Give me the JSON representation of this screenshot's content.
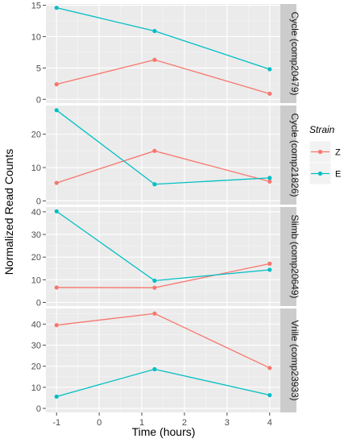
{
  "chart_data": {
    "type": "line",
    "xlabel": "Time (hours)",
    "ylabel": "Normalized Read Counts",
    "x": [
      -1,
      1.3,
      4
    ],
    "xlim": [
      -1.25,
      4.25
    ],
    "xticks": [
      -1,
      0,
      1,
      2,
      3,
      4
    ],
    "legend": {
      "title": "Strain",
      "position": "right",
      "entries": [
        "Z",
        "E"
      ]
    },
    "colors": {
      "Z": "#f8766d",
      "E": "#00bfc4"
    },
    "grid": true,
    "panels": [
      {
        "strip": "Cycle (comp20479)",
        "ylim": [
          -0.6,
          15.2
        ],
        "yticks": [
          0,
          5,
          10,
          15
        ],
        "series": [
          {
            "name": "Z",
            "values": [
              2.4,
              6.3,
              0.9
            ]
          },
          {
            "name": "E",
            "values": [
              14.6,
              10.9,
              4.8
            ]
          }
        ]
      },
      {
        "strip": "Cycle (comp21826)",
        "ylim": [
          -1.1,
          28.6
        ],
        "yticks": [
          0,
          10,
          20
        ],
        "series": [
          {
            "name": "Z",
            "values": [
              5.4,
              15.0,
              5.8
            ]
          },
          {
            "name": "E",
            "values": [
              27.2,
              5.0,
              6.9
            ]
          }
        ]
      },
      {
        "strip": "Slimb (comp20649)",
        "ylim": [
          -1.6,
          42.1
        ],
        "yticks": [
          0,
          10,
          20,
          30,
          40
        ],
        "series": [
          {
            "name": "Z",
            "values": [
              6.6,
              6.5,
              17.1
            ]
          },
          {
            "name": "E",
            "values": [
              40.2,
              9.6,
              14.4
            ]
          }
        ]
      },
      {
        "strip": "Vrille (comp23933)",
        "ylim": [
          -1.9,
          47.4
        ],
        "yticks": [
          0,
          10,
          20,
          30,
          40
        ],
        "series": [
          {
            "name": "Z",
            "values": [
              39.5,
              45.0,
              19.2
            ]
          },
          {
            "name": "E",
            "values": [
              5.6,
              18.6,
              6.3
            ]
          }
        ]
      }
    ]
  }
}
